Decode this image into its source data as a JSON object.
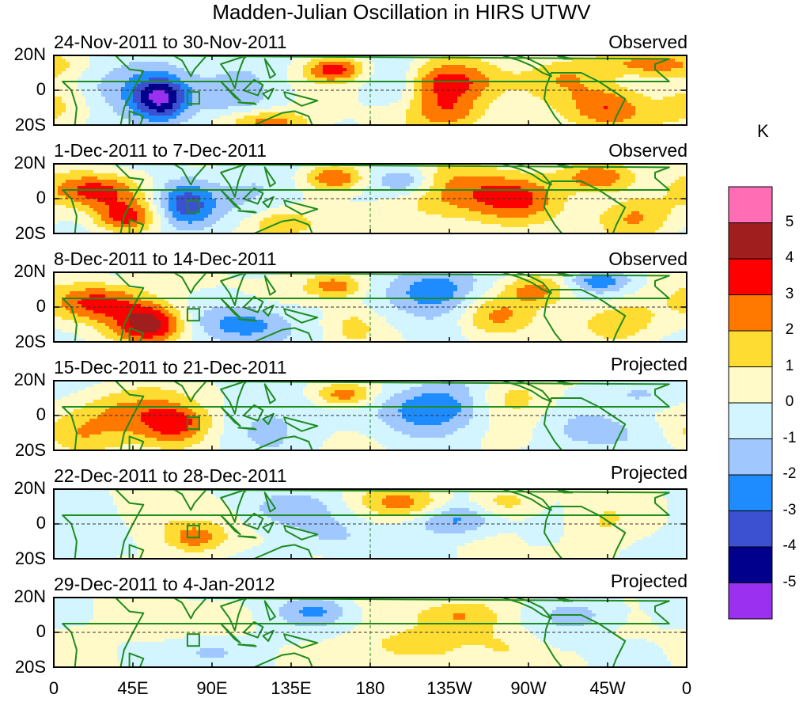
{
  "title": "Madden-Julian Oscillation in HIRS UTWV",
  "colors": {
    "land": "#1e8c1e",
    "bins": [
      "#9b30f0",
      "#00008c",
      "#3c50d2",
      "#1e8cff",
      "#a0c8ff",
      "#d2f5ff",
      "#fffac8",
      "#ffdc32",
      "#ff7800",
      "#ff0000",
      "#a01e1e",
      "#ff6eb4"
    ]
  },
  "chart_data": {
    "type": "heatmap",
    "title": "Madden-Julian Oscillation in HIRS UTWV",
    "ylabel_ticks": [
      "20N",
      "0",
      "20S"
    ],
    "xlabel_ticks": [
      "0",
      "45E",
      "90E",
      "135E",
      "180",
      "135W",
      "90W",
      "45W",
      "0"
    ],
    "xlim": [
      0,
      360
    ],
    "ylim": [
      -20,
      20
    ],
    "colorbar": {
      "unit": "K",
      "levels": [
        "5",
        "4",
        "3",
        "2",
        "1",
        "0",
        "-1",
        "-2",
        "-3",
        "-4",
        "-5"
      ]
    },
    "panels": [
      {
        "period": "24-Nov-2011 to 30-Nov-2011",
        "status": "Observed",
        "anoms": [
          {
            "lon": 60,
            "lat": -5,
            "amp": -5.5,
            "sx": 12,
            "sy": 10
          },
          {
            "lon": 28,
            "lat": 0,
            "amp": -1.5,
            "sx": 15,
            "sy": 12
          },
          {
            "lon": 105,
            "lat": 0,
            "amp": -1.2,
            "sx": 20,
            "sy": 20
          },
          {
            "lon": 160,
            "lat": 12,
            "amp": 3.5,
            "sx": 12,
            "sy": 5
          },
          {
            "lon": 120,
            "lat": -18,
            "amp": 3,
            "sx": 18,
            "sy": 5
          },
          {
            "lon": 225,
            "lat": 5,
            "amp": 3.2,
            "sx": 20,
            "sy": 8
          },
          {
            "lon": 225,
            "lat": -12,
            "amp": 2.8,
            "sx": 16,
            "sy": 8
          },
          {
            "lon": 195,
            "lat": 5,
            "amp": -1.5,
            "sx": 10,
            "sy": 10
          },
          {
            "lon": 315,
            "lat": -10,
            "amp": 3,
            "sx": 16,
            "sy": 9
          },
          {
            "lon": 290,
            "lat": 8,
            "amp": 1.8,
            "sx": 18,
            "sy": 8
          },
          {
            "lon": 340,
            "lat": 15,
            "amp": 2.5,
            "sx": 20,
            "sy": 5
          },
          {
            "lon": 5,
            "lat": -10,
            "amp": 1.5,
            "sx": 18,
            "sy": 10
          }
        ]
      },
      {
        "period": "1-Dec-2011 to 7-Dec-2011",
        "status": "Observed",
        "anoms": [
          {
            "lon": 75,
            "lat": -3,
            "amp": -3.5,
            "sx": 12,
            "sy": 10
          },
          {
            "lon": 25,
            "lat": 5,
            "amp": 3.5,
            "sx": 18,
            "sy": 7
          },
          {
            "lon": 40,
            "lat": -10,
            "amp": 3.2,
            "sx": 12,
            "sy": 6
          },
          {
            "lon": 160,
            "lat": 12,
            "amp": 3.2,
            "sx": 12,
            "sy": 5
          },
          {
            "lon": 130,
            "lat": -15,
            "amp": 2.2,
            "sx": 14,
            "sy": 6
          },
          {
            "lon": 240,
            "lat": 2,
            "amp": 2.8,
            "sx": 28,
            "sy": 12
          },
          {
            "lon": 265,
            "lat": 0,
            "amp": 1.5,
            "sx": 14,
            "sy": 8
          },
          {
            "lon": 200,
            "lat": 10,
            "amp": -2.2,
            "sx": 12,
            "sy": 6
          },
          {
            "lon": 310,
            "lat": 12,
            "amp": 3,
            "sx": 14,
            "sy": 6
          },
          {
            "lon": 330,
            "lat": -10,
            "amp": 2.2,
            "sx": 16,
            "sy": 8
          },
          {
            "lon": 120,
            "lat": 5,
            "amp": -1.2,
            "sx": 18,
            "sy": 12
          }
        ]
      },
      {
        "period": "8-Dec-2011 to 14-Dec-2011",
        "status": "Observed",
        "anoms": [
          {
            "lon": 55,
            "lat": -10,
            "amp": 4.3,
            "sx": 14,
            "sy": 8
          },
          {
            "lon": 25,
            "lat": 3,
            "amp": 3.5,
            "sx": 18,
            "sy": 8
          },
          {
            "lon": 110,
            "lat": -10,
            "amp": -2.5,
            "sx": 20,
            "sy": 8
          },
          {
            "lon": 160,
            "lat": 12,
            "amp": 3,
            "sx": 12,
            "sy": 5
          },
          {
            "lon": 215,
            "lat": 10,
            "amp": -3,
            "sx": 18,
            "sy": 10
          },
          {
            "lon": 275,
            "lat": 10,
            "amp": 2.5,
            "sx": 14,
            "sy": 6
          },
          {
            "lon": 250,
            "lat": -5,
            "amp": 2,
            "sx": 14,
            "sy": 8
          },
          {
            "lon": 310,
            "lat": 15,
            "amp": -2.5,
            "sx": 14,
            "sy": 5
          },
          {
            "lon": 320,
            "lat": -8,
            "amp": 1.8,
            "sx": 18,
            "sy": 8
          },
          {
            "lon": 170,
            "lat": -10,
            "amp": 1.2,
            "sx": 10,
            "sy": 8
          }
        ]
      },
      {
        "period": "15-Dec-2011 to 21-Dec-2011",
        "status": "Projected",
        "anoms": [
          {
            "lon": 70,
            "lat": -5,
            "amp": 3.8,
            "sx": 14,
            "sy": 9
          },
          {
            "lon": 40,
            "lat": 2,
            "amp": 2.2,
            "sx": 20,
            "sy": 10
          },
          {
            "lon": 120,
            "lat": -5,
            "amp": -1.5,
            "sx": 18,
            "sy": 12
          },
          {
            "lon": 165,
            "lat": 12,
            "amp": 3,
            "sx": 12,
            "sy": 5
          },
          {
            "lon": 215,
            "lat": 5,
            "amp": -3,
            "sx": 22,
            "sy": 10
          },
          {
            "lon": 260,
            "lat": 10,
            "amp": 1.5,
            "sx": 16,
            "sy": 8
          },
          {
            "lon": 310,
            "lat": -10,
            "amp": -1.5,
            "sx": 18,
            "sy": 8
          },
          {
            "lon": 335,
            "lat": 12,
            "amp": -1.5,
            "sx": 16,
            "sy": 6
          },
          {
            "lon": 10,
            "lat": -12,
            "amp": 1.5,
            "sx": 14,
            "sy": 8
          }
        ]
      },
      {
        "period": "22-Dec-2011 to 28-Dec-2011",
        "status": "Projected",
        "anoms": [
          {
            "lon": 80,
            "lat": -8,
            "amp": 2.5,
            "sx": 12,
            "sy": 6
          },
          {
            "lon": 60,
            "lat": 2,
            "amp": 1,
            "sx": 18,
            "sy": 10
          },
          {
            "lon": 130,
            "lat": 8,
            "amp": -1.5,
            "sx": 18,
            "sy": 8
          },
          {
            "lon": 200,
            "lat": 12,
            "amp": 2.2,
            "sx": 18,
            "sy": 6
          },
          {
            "lon": 230,
            "lat": 3,
            "amp": -2.5,
            "sx": 16,
            "sy": 7
          },
          {
            "lon": 255,
            "lat": 12,
            "amp": 1.5,
            "sx": 14,
            "sy": 6
          },
          {
            "lon": 310,
            "lat": 0,
            "amp": 1,
            "sx": 14,
            "sy": 10
          },
          {
            "lon": 20,
            "lat": -5,
            "amp": -1.2,
            "sx": 16,
            "sy": 10
          },
          {
            "lon": 160,
            "lat": -8,
            "amp": -1.2,
            "sx": 14,
            "sy": 8
          }
        ]
      },
      {
        "period": "29-Dec-2011 to 4-Jan-2012",
        "status": "Projected",
        "anoms": [
          {
            "lon": 150,
            "lat": 12,
            "amp": -2,
            "sx": 14,
            "sy": 6
          },
          {
            "lon": 230,
            "lat": 10,
            "amp": 2,
            "sx": 18,
            "sy": 7
          },
          {
            "lon": 200,
            "lat": -8,
            "amp": 1.8,
            "sx": 18,
            "sy": 7
          },
          {
            "lon": 300,
            "lat": 10,
            "amp": -1.5,
            "sx": 16,
            "sy": 7
          },
          {
            "lon": 90,
            "lat": -10,
            "amp": -1.3,
            "sx": 16,
            "sy": 7
          },
          {
            "lon": 60,
            "lat": 3,
            "amp": 0.9,
            "sx": 18,
            "sy": 8
          },
          {
            "lon": 260,
            "lat": -8,
            "amp": 1,
            "sx": 14,
            "sy": 8
          }
        ]
      }
    ]
  }
}
